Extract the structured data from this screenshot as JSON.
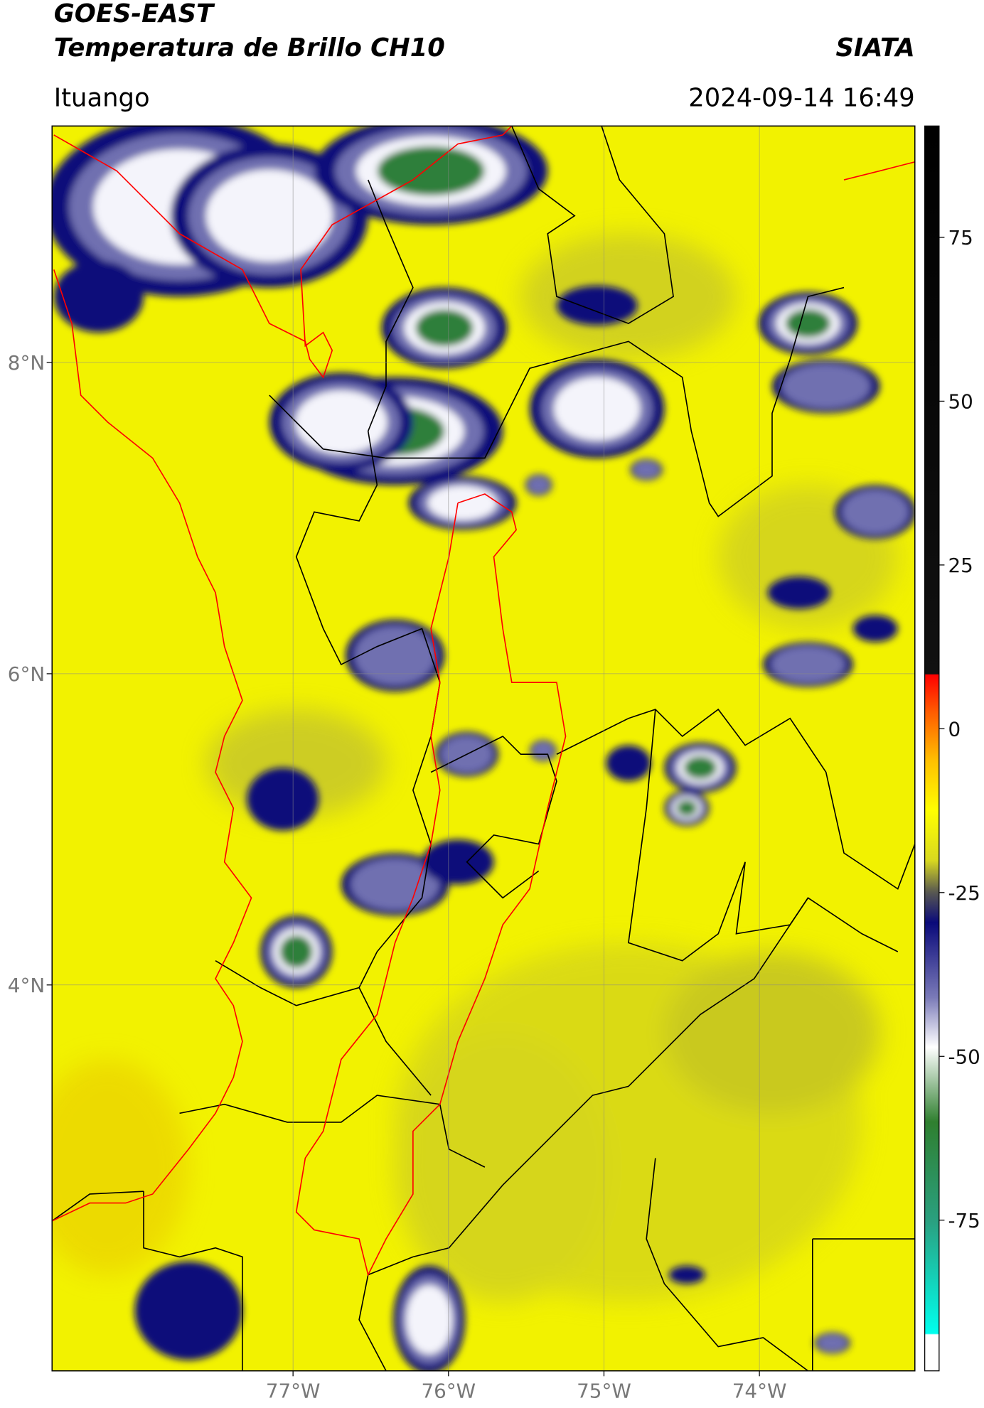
{
  "header": {
    "title_line1": "GOES-EAST",
    "title_line2": "Temperatura de Brillo CH10",
    "source": "SIATA",
    "location": "Ituango",
    "timestamp": "2024-09-14 16:49"
  },
  "map": {
    "latlim": [
      1.52,
      9.52
    ],
    "lonlim": [
      -78.55,
      -73.0
    ],
    "lat_ticks": [
      {
        "value": 8,
        "label": "8°N"
      },
      {
        "value": 6,
        "label": "6°N"
      },
      {
        "value": 4,
        "label": "4°N"
      }
    ],
    "lon_ticks": [
      {
        "value": -77,
        "label": "77°W"
      },
      {
        "value": -76,
        "label": "76°W"
      },
      {
        "value": -75,
        "label": "75°W"
      },
      {
        "value": -74,
        "label": "74°W"
      }
    ]
  },
  "colorbar": {
    "lim": [
      -98,
      92
    ],
    "ticks": [
      75,
      50,
      25,
      0,
      -25,
      -50,
      -75
    ]
  }
}
